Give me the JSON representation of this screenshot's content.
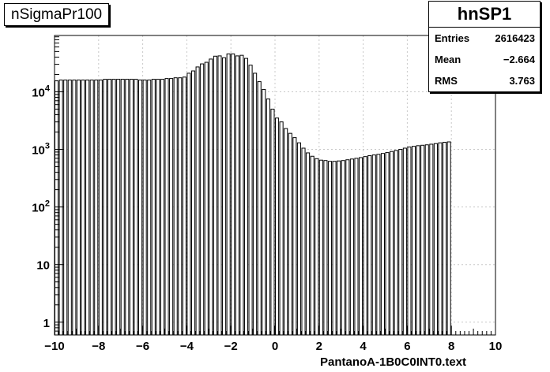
{
  "chart_data": {
    "type": "bar",
    "title": "nSigmaPr100",
    "xlabel": "PantanoA-1B0C0INT0.text",
    "ylabel": "",
    "log_y": true,
    "xlim": [
      -10,
      10
    ],
    "ylim": [
      0.6,
      95000
    ],
    "grid": true,
    "x_ticks": [
      "−10",
      "−8",
      "−6",
      "−4",
      "−2",
      "0",
      "2",
      "4",
      "6",
      "8",
      "10"
    ],
    "y_ticks": [
      {
        "value": 1,
        "base": "1",
        "exp": ""
      },
      {
        "value": 10,
        "base": "10",
        "exp": ""
      },
      {
        "value": 100,
        "base": "10",
        "exp": "2"
      },
      {
        "value": 1000,
        "base": "10",
        "exp": "3"
      },
      {
        "value": 10000,
        "base": "10",
        "exp": "4"
      }
    ],
    "bin_edges_from": -10,
    "bin_width": 0.2,
    "values": [
      15500,
      16000,
      16000,
      16000,
      16000,
      16000,
      16000,
      16000,
      16000,
      16000,
      16000,
      16500,
      16500,
      16500,
      16500,
      16500,
      16500,
      16500,
      16500,
      16000,
      16000,
      16000,
      16500,
      16500,
      16500,
      17000,
      17000,
      17500,
      17500,
      18000,
      21000,
      23000,
      27000,
      30500,
      32500,
      37000,
      41500,
      42000,
      39000,
      45500,
      45500,
      42000,
      43000,
      38000,
      29000,
      21000,
      15000,
      11000,
      7500,
      5000,
      3500,
      3000,
      2300,
      1900,
      1600,
      1300,
      1050,
      870,
      760,
      690,
      650,
      640,
      620,
      620,
      630,
      640,
      660,
      680,
      700,
      720,
      750,
      780,
      800,
      820,
      850,
      880,
      920,
      960,
      1000,
      1050,
      1100,
      1130,
      1160,
      1180,
      1200,
      1230,
      1260,
      1300,
      1330,
      1350
    ]
  },
  "stats": {
    "name": "hnSP1",
    "rows": [
      {
        "label": "Entries",
        "value": "2616423"
      },
      {
        "label": "Mean",
        "value": "−2.664"
      },
      {
        "label": "RMS",
        "value": "3.763"
      }
    ]
  }
}
